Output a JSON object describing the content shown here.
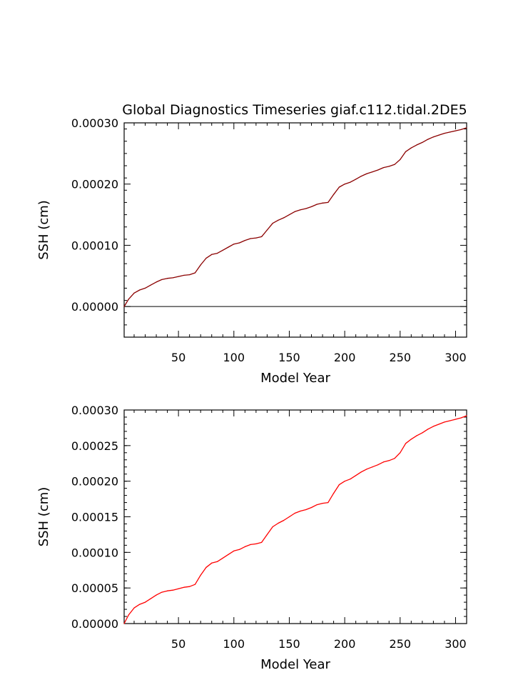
{
  "figure_title": "Global Diagnostics Timeseries giaf.c112.tidal.2DE5",
  "colors": {
    "panel1_line": "#8b0000",
    "panel2_line": "#ff0000",
    "axes": "#000000",
    "background": "#ffffff"
  },
  "chart_data": [
    {
      "type": "line",
      "title": "Global Diagnostics Timeseries giaf.c112.tidal.2DE5",
      "xlabel": "Model Year",
      "ylabel": "SSH (cm)",
      "xlim": [
        1,
        310
      ],
      "ylim": [
        -5e-05,
        0.0003
      ],
      "x_ticks": [
        50,
        100,
        150,
        200,
        250,
        300
      ],
      "x_tick_labels": [
        "50",
        "100",
        "150",
        "200",
        "250",
        "300"
      ],
      "y_ticks": [
        0.0,
        0.0001,
        0.0002,
        0.0003
      ],
      "y_tick_labels": [
        "0.00000",
        "0.00010",
        "0.00020",
        "0.00030"
      ],
      "reference_line": 0.0,
      "grid": false,
      "series": [
        {
          "name": "SSH",
          "x": [
            1,
            5,
            10,
            15,
            20,
            25,
            30,
            35,
            40,
            45,
            50,
            55,
            60,
            65,
            70,
            75,
            80,
            85,
            90,
            95,
            100,
            105,
            110,
            115,
            120,
            125,
            130,
            135,
            140,
            145,
            150,
            155,
            160,
            165,
            170,
            175,
            180,
            185,
            190,
            195,
            200,
            205,
            210,
            215,
            220,
            225,
            230,
            235,
            240,
            245,
            250,
            255,
            260,
            265,
            270,
            275,
            280,
            285,
            290,
            295,
            300,
            305,
            310
          ],
          "values": [
            0.0,
            1.2e-05,
            2.2e-05,
            2.7e-05,
            3e-05,
            3.5e-05,
            4e-05,
            4.4e-05,
            4.6e-05,
            4.7e-05,
            4.9e-05,
            5.1e-05,
            5.2e-05,
            5.5e-05,
            6.8e-05,
            7.9e-05,
            8.5e-05,
            8.7e-05,
            9.2e-05,
            9.7e-05,
            0.000102,
            0.000104,
            0.000108,
            0.000111,
            0.000112,
            0.000114,
            0.000125,
            0.000136,
            0.000141,
            0.000145,
            0.00015,
            0.000155,
            0.000158,
            0.00016,
            0.000163,
            0.000167,
            0.000169,
            0.00017,
            0.000183,
            0.000195,
            0.0002,
            0.000203,
            0.000208,
            0.000213,
            0.000217,
            0.00022,
            0.000223,
            0.000227,
            0.000229,
            0.000232,
            0.00024,
            0.000253,
            0.000259,
            0.000264,
            0.000268,
            0.000273,
            0.000277,
            0.00028,
            0.000283,
            0.000285,
            0.000287,
            0.000289,
            0.000292
          ]
        }
      ]
    },
    {
      "type": "line",
      "title": "",
      "xlabel": "Model Year",
      "ylabel": "SSH (cm)",
      "xlim": [
        1,
        310
      ],
      "ylim": [
        0.0,
        0.0003
      ],
      "x_ticks": [
        50,
        100,
        150,
        200,
        250,
        300
      ],
      "x_tick_labels": [
        "50",
        "100",
        "150",
        "200",
        "250",
        "300"
      ],
      "y_ticks": [
        0.0,
        5e-05,
        0.0001,
        0.00015,
        0.0002,
        0.00025,
        0.0003
      ],
      "y_tick_labels": [
        "0.00000",
        "0.00005",
        "0.00010",
        "0.00015",
        "0.00020",
        "0.00025",
        "0.00030"
      ],
      "grid": false,
      "series": [
        {
          "name": "SSH",
          "x": [
            1,
            5,
            10,
            15,
            20,
            25,
            30,
            35,
            40,
            45,
            50,
            55,
            60,
            65,
            70,
            75,
            80,
            85,
            90,
            95,
            100,
            105,
            110,
            115,
            120,
            125,
            130,
            135,
            140,
            145,
            150,
            155,
            160,
            165,
            170,
            175,
            180,
            185,
            190,
            195,
            200,
            205,
            210,
            215,
            220,
            225,
            230,
            235,
            240,
            245,
            250,
            255,
            260,
            265,
            270,
            275,
            280,
            285,
            290,
            295,
            300,
            305,
            310
          ],
          "values": [
            0.0,
            1.2e-05,
            2.2e-05,
            2.7e-05,
            3e-05,
            3.5e-05,
            4e-05,
            4.4e-05,
            4.6e-05,
            4.7e-05,
            4.9e-05,
            5.1e-05,
            5.2e-05,
            5.5e-05,
            6.8e-05,
            7.9e-05,
            8.5e-05,
            8.7e-05,
            9.2e-05,
            9.7e-05,
            0.000102,
            0.000104,
            0.000108,
            0.000111,
            0.000112,
            0.000114,
            0.000125,
            0.000136,
            0.000141,
            0.000145,
            0.00015,
            0.000155,
            0.000158,
            0.00016,
            0.000163,
            0.000167,
            0.000169,
            0.00017,
            0.000183,
            0.000195,
            0.0002,
            0.000203,
            0.000208,
            0.000213,
            0.000217,
            0.00022,
            0.000223,
            0.000227,
            0.000229,
            0.000232,
            0.00024,
            0.000253,
            0.000259,
            0.000264,
            0.000268,
            0.000273,
            0.000277,
            0.00028,
            0.000283,
            0.000285,
            0.000287,
            0.000289,
            0.000292
          ]
        }
      ]
    }
  ]
}
